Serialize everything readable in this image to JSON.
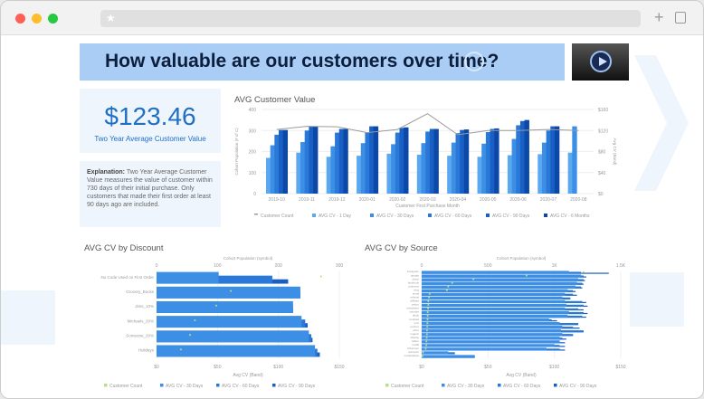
{
  "browser": {
    "star_icon": "star-icon",
    "new_tab": "+",
    "tabs_icon": "tabs-icon"
  },
  "banner": {
    "title": "How valuable are our customers over time?"
  },
  "kpi": {
    "value": "$123.46",
    "label": "Two Year Average Customer Value"
  },
  "explanation": {
    "label": "Explanation:",
    "text": " Two Year Average Customer Value measures the value of customer within 730 days of their initial purchase. Only customers that made their first order at least 90 days ago are included."
  },
  "colors": {
    "s1": "#5aa9f0",
    "s2": "#3d8fe6",
    "s3": "#2a78d8",
    "s4": "#1a5fc4",
    "s5": "#0c48a8",
    "line": "#9a9a9a",
    "count": "#b5e08a"
  },
  "chart_data": [
    {
      "type": "bar",
      "title": "AVG Customer Value",
      "xlabel": "Customer First Purchase Month",
      "ylabel": "Cohort Population (# of C)",
      "y2label": "Avg CV (Band)",
      "ylim": [
        0,
        400
      ],
      "y2lim": [
        0,
        160
      ],
      "yticks": [
        "0",
        "100",
        "200",
        "300",
        "400"
      ],
      "y2ticks": [
        "$0",
        "$40",
        "$80",
        "$120",
        "$160"
      ],
      "categories": [
        "2019-10",
        "2019-11",
        "2019-12",
        "2020-01",
        "2020-02",
        "2020-03",
        "2020-04",
        "2020-05",
        "2020-06",
        "2020-07",
        "2020-08"
      ],
      "series": [
        {
          "name": "Customer Count",
          "axis": "left",
          "kind": "line",
          "values": [
            305,
            320,
            318,
            290,
            305,
            380,
            280,
            300,
            300,
            305,
            300
          ]
        },
        {
          "name": "AVG CV - 1 Day",
          "kind": "bar",
          "values": [
            68,
            78,
            70,
            72,
            76,
            74,
            72,
            70,
            73,
            75,
            78
          ]
        },
        {
          "name": "AVG CV - 30 Days",
          "kind": "bar",
          "values": [
            92,
            98,
            90,
            96,
            94,
            96,
            97,
            95,
            104,
            97,
            128
          ]
        },
        {
          "name": "AVG CV - 60 Days",
          "kind": "bar",
          "values": [
            112,
            120,
            116,
            116,
            116,
            118,
            115,
            117,
            130,
            120,
            null
          ]
        },
        {
          "name": "AVG CV - 90 Days",
          "kind": "bar",
          "values": [
            121,
            128,
            123,
            128,
            125,
            123,
            121,
            123,
            138,
            128,
            null
          ]
        },
        {
          "name": "AVG CV - 6 Months",
          "kind": "bar",
          "values": [
            121,
            128,
            123,
            128,
            126,
            123,
            122,
            124,
            140,
            128,
            null
          ]
        }
      ],
      "legend": "bottom"
    },
    {
      "type": "bar",
      "orientation": "horizontal",
      "title": "AVG CV by Discount",
      "xlabel": "Avg CV (Band)",
      "x2label": "Cohort Population (symbol)",
      "xlim": [
        0,
        150
      ],
      "x2lim": [
        0,
        300
      ],
      "xticks": [
        "$0",
        "$50",
        "$100",
        "$150"
      ],
      "x2ticks": [
        "0",
        "100",
        "200",
        "300"
      ],
      "categories": [
        "No Code Used on First Order",
        "Grocery_Bucks",
        "Jims_10%",
        "Michaels_20%",
        "Someone_20%",
        "Holidays"
      ],
      "series": [
        {
          "name": "Customer Count",
          "kind": "point",
          "values": [
            270,
            122,
            98,
            63,
            55,
            40
          ]
        },
        {
          "name": "AVG CV - 30 Days",
          "values": [
            51,
            118,
            112,
            119,
            125,
            130
          ]
        },
        {
          "name": "AVG CV - 60 Days",
          "values": [
            95,
            118,
            112,
            122,
            127,
            132
          ]
        },
        {
          "name": "AVG CV - 90 Days",
          "values": [
            108,
            118,
            112,
            124,
            128,
            134
          ]
        }
      ],
      "legend": "bottom"
    },
    {
      "type": "bar",
      "orientation": "horizontal",
      "title": "AVG CV by Source",
      "xlabel": "Avg CV (Band)",
      "x2label": "Cohort Population (symbol)",
      "xlim": [
        0,
        150
      ],
      "x2lim": [
        0,
        1500
      ],
      "xticks": [
        "$0",
        "$50",
        "$100",
        "$150"
      ],
      "x2ticks": [
        "0",
        "500",
        "1K",
        "1.5K"
      ],
      "categories": [
        "instagram",
        "google",
        "direct",
        "facebook",
        "pinterest",
        "bing",
        "email",
        "referral",
        "affiliate",
        "yahoo",
        "newsletter",
        "youtube",
        "tiktok",
        "podcast",
        "sms",
        "partner",
        "other",
        "organic",
        "display",
        "twitter",
        "reddit",
        "influencer",
        "unknown",
        "marketplace"
      ],
      "series": [
        {
          "name": "Customer Count",
          "kind": "point",
          "values": [
            1220,
            790,
            390,
            230,
            200,
            190,
            60,
            55,
            50,
            50,
            48,
            46,
            45,
            44,
            43,
            42,
            40,
            40,
            38,
            36,
            35,
            30,
            10,
            5
          ]
        },
        {
          "name": "AVG CV - 30 Days",
          "values": [
            111,
            120,
            118,
            117,
            116,
            110,
            108,
            106,
            108,
            109,
            108,
            111,
            110,
            96,
            104,
            106,
            105,
            106,
            104,
            104,
            100,
            94,
            20,
            40
          ]
        },
        {
          "name": "AVG CV - 60 Days",
          "values": [
            120,
            122,
            122,
            121,
            120,
            114,
            114,
            112,
            121,
            122,
            118,
            122,
            121,
            98,
            118,
            114,
            122,
            114,
            106,
            104,
            104,
            104,
            25,
            40
          ]
        },
        {
          "name": "AVG CV - 90 Days",
          "values": [
            141,
            124,
            123,
            122,
            121,
            116,
            117,
            112,
            124,
            125,
            122,
            125,
            124,
            102,
            118,
            119,
            122,
            114,
            109,
            108,
            108,
            108,
            25,
            40
          ]
        }
      ],
      "legend": "bottom"
    }
  ]
}
